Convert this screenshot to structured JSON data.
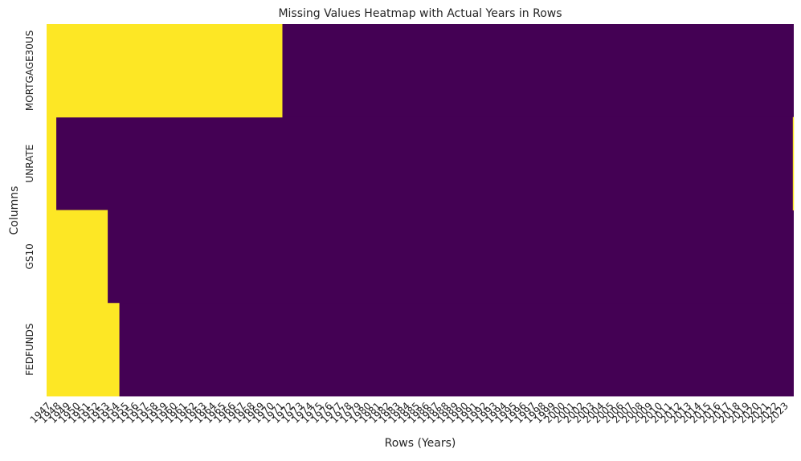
{
  "chart_data": {
    "type": "heatmap",
    "title": "Missing Values Heatmap with Actual Years in Rows",
    "xlabel": "Rows (Years)",
    "ylabel": "Columns",
    "x_start_year": 1947,
    "x_end_year": 2023,
    "rows": [
      "MORTGAGE30US",
      "UNRATE",
      "GS10",
      "FEDFUNDS"
    ],
    "missing_ranges": [
      {
        "row": "MORTGAGE30US",
        "from": 1947.0,
        "to": 1971.3
      },
      {
        "row": "UNRATE",
        "from": 1947.0,
        "to": 1948.0
      },
      {
        "row": "UNRATE",
        "from": 2023.9,
        "to": 2024.0
      },
      {
        "row": "GS10",
        "from": 1947.0,
        "to": 1953.3
      },
      {
        "row": "FEDFUNDS",
        "from": 1947.0,
        "to": 1954.5
      }
    ],
    "missing_color": "#fde725",
    "present_color": "#440154",
    "grid": false,
    "colorbar": false
  }
}
